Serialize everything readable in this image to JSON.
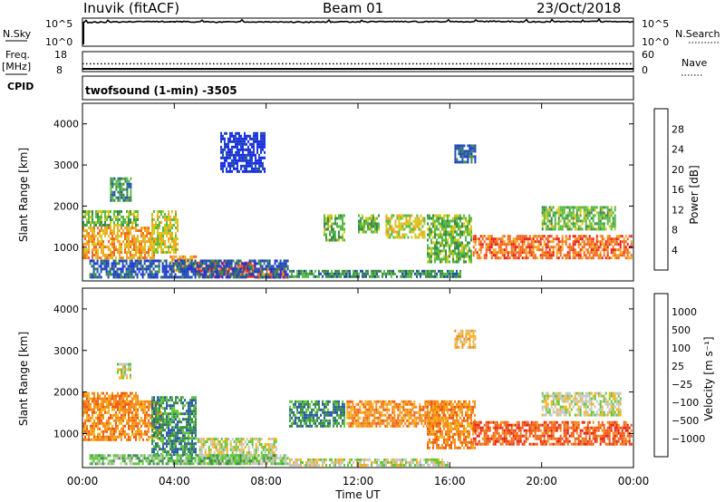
{
  "header": {
    "station": "Inuvik (fitACF)",
    "beam": "Beam 01",
    "date": "23/Oct/2018"
  },
  "strip_labels": {
    "nsky": "N.Sky",
    "nsky_ticks": [
      "10^5",
      "10^0"
    ],
    "nsearch": "N.Search",
    "nsearch_ticks": [
      "10^5",
      "10^0"
    ],
    "freq": "Freq.",
    "freq_unit": "[MHz]",
    "freq_ticks": [
      "18",
      "8"
    ],
    "nave": "Nave",
    "nave_ticks": [
      "60",
      "0"
    ],
    "cpid": "CPID",
    "program": "twofsound (1-min) -3505"
  },
  "chart_data": [
    {
      "type": "line",
      "panel": "nsky-nsearch",
      "x_range_hours": [
        0,
        24
      ],
      "log_scale": true,
      "series": [
        {
          "name": "N.Sky",
          "style": "solid",
          "x": [
            0,
            2,
            4,
            6,
            8,
            10,
            12,
            14,
            16,
            18,
            20,
            22,
            24
          ],
          "values": [
            30000,
            40000,
            45000,
            35000,
            40000,
            35000,
            40000,
            45000,
            40000,
            50000,
            40000,
            45000,
            40000
          ]
        },
        {
          "name": "N.Search",
          "style": "dotted",
          "x": [
            3.8,
            4.0,
            4.3
          ],
          "values": [
            100000,
            100000,
            100000
          ]
        }
      ]
    },
    {
      "type": "line",
      "panel": "freq-nave",
      "x_range_hours": [
        0,
        24
      ],
      "series": [
        {
          "name": "Freq.",
          "style": "solid",
          "x": [
            0,
            24
          ],
          "values": [
            9,
            9
          ]
        },
        {
          "name": "Nave",
          "style": "dotted",
          "x": [
            0,
            24
          ],
          "values": [
            23,
            23
          ]
        }
      ]
    },
    {
      "type": "heatmap",
      "panel": "power",
      "ylabel": "Slant Range [km]",
      "ylim": [
        180,
        4500
      ],
      "yticks": [
        "1000",
        "2000",
        "3000",
        "4000"
      ],
      "colorbar_label": "Power [dB]",
      "colorbar_ticks": [
        "4",
        "8",
        "12",
        "16",
        "20",
        "24",
        "28"
      ],
      "colorbar_colors": [
        "#1a2ee6",
        "#1f4fa8",
        "#3d8a4a",
        "#55bb44",
        "#d6c81e",
        "#f2a51e",
        "#f2651e",
        "#e81e12"
      ]
    },
    {
      "type": "heatmap",
      "panel": "velocity",
      "ylabel": "Slant Range [km]",
      "ylim": [
        180,
        4500
      ],
      "yticks": [
        "1000",
        "2000",
        "3000",
        "4000"
      ],
      "colorbar_label": "Velocity [m s⁻¹]",
      "colorbar_ticks": [
        "1000",
        "500",
        "100",
        "25",
        "−25",
        "−100",
        "−500",
        "−1000"
      ],
      "colorbar_colors": [
        "#1a2ee6",
        "#2b57b4",
        "#3b8a4e",
        "#5ec83a",
        "#c8c8c0",
        "#f7b21a",
        "#f48a1a",
        "#f05a14",
        "#e81e12"
      ],
      "xlabel": "Time UT",
      "xticks": [
        "00:00",
        "04:00",
        "08:00",
        "12:00",
        "16:00",
        "20:00",
        "00:00"
      ]
    }
  ],
  "scatter_features": {
    "note_units": "time in UT hours, range in km",
    "power_bands": [
      {
        "t0": 0.0,
        "t1": 3.2,
        "r0": 700,
        "r1": 1500,
        "level": 5
      },
      {
        "t0": 0.0,
        "t1": 2.5,
        "r0": 1500,
        "r1": 1900,
        "level": 3
      },
      {
        "t0": 1.2,
        "t1": 2.2,
        "r0": 2100,
        "r1": 2700,
        "level": 2
      },
      {
        "t0": 3.0,
        "t1": 4.2,
        "r0": 800,
        "r1": 1900,
        "level": 4
      },
      {
        "t0": 3.8,
        "t1": 5.0,
        "r0": 350,
        "r1": 800,
        "level": 5
      },
      {
        "t0": 5.0,
        "t1": 7.6,
        "r0": 250,
        "r1": 650,
        "level": 7
      },
      {
        "t0": 7.6,
        "t1": 9.0,
        "r0": 200,
        "r1": 500,
        "level": 6
      },
      {
        "t0": 9.0,
        "t1": 16.5,
        "r0": 200,
        "r1": 450,
        "level": 2
      },
      {
        "t0": 10.5,
        "t1": 11.5,
        "r0": 1100,
        "r1": 1800,
        "level": 3
      },
      {
        "t0": 12.0,
        "t1": 13.0,
        "r0": 1300,
        "r1": 1800,
        "level": 3
      },
      {
        "t0": 13.2,
        "t1": 15.0,
        "r0": 1200,
        "r1": 1800,
        "level": 4
      },
      {
        "t0": 15.0,
        "t1": 17.0,
        "r0": 600,
        "r1": 1800,
        "level": 3
      },
      {
        "t0": 16.2,
        "t1": 17.2,
        "r0": 3000,
        "r1": 3500,
        "level": 1
      },
      {
        "t0": 17.0,
        "t1": 24.0,
        "r0": 700,
        "r1": 1300,
        "level": 6
      },
      {
        "t0": 20.0,
        "t1": 23.3,
        "r0": 1400,
        "r1": 2000,
        "level": 3
      },
      {
        "t0": 0.3,
        "t1": 9.0,
        "r0": 200,
        "r1": 700,
        "level": 1
      },
      {
        "t0": 6.0,
        "t1": 8.0,
        "r0": 2800,
        "r1": 3800,
        "level": 0
      }
    ],
    "velocity_bands": [
      {
        "t0": 0.0,
        "t1": 3.5,
        "r0": 800,
        "r1": 1800,
        "level": 6
      },
      {
        "t0": 0.0,
        "t1": 2.5,
        "r0": 1500,
        "r1": 2000,
        "level": 6
      },
      {
        "t0": 1.5,
        "t1": 2.2,
        "r0": 2300,
        "r1": 2700,
        "level": 4
      },
      {
        "t0": 3.0,
        "t1": 5.0,
        "r0": 400,
        "r1": 1900,
        "level": 2
      },
      {
        "t0": 5.0,
        "t1": 8.5,
        "r0": 200,
        "r1": 900,
        "level": 4
      },
      {
        "t0": 9.0,
        "t1": 11.5,
        "r0": 1100,
        "r1": 1800,
        "level": 2
      },
      {
        "t0": 11.5,
        "t1": 16.0,
        "r0": 1100,
        "r1": 1800,
        "level": 6
      },
      {
        "t0": 15.0,
        "t1": 17.2,
        "r0": 600,
        "r1": 1800,
        "level": 6
      },
      {
        "t0": 16.2,
        "t1": 17.2,
        "r0": 3000,
        "r1": 3500,
        "level": 5
      },
      {
        "t0": 17.0,
        "t1": 24.0,
        "r0": 700,
        "r1": 1300,
        "level": 7
      },
      {
        "t0": 20.0,
        "t1": 23.5,
        "r0": 1400,
        "r1": 2000,
        "level": 4
      },
      {
        "t0": 0.3,
        "t1": 9.0,
        "r0": 200,
        "r1": 500,
        "level": 3
      },
      {
        "t0": 9.0,
        "t1": 16.0,
        "r0": 200,
        "r1": 400,
        "level": 4
      }
    ]
  }
}
